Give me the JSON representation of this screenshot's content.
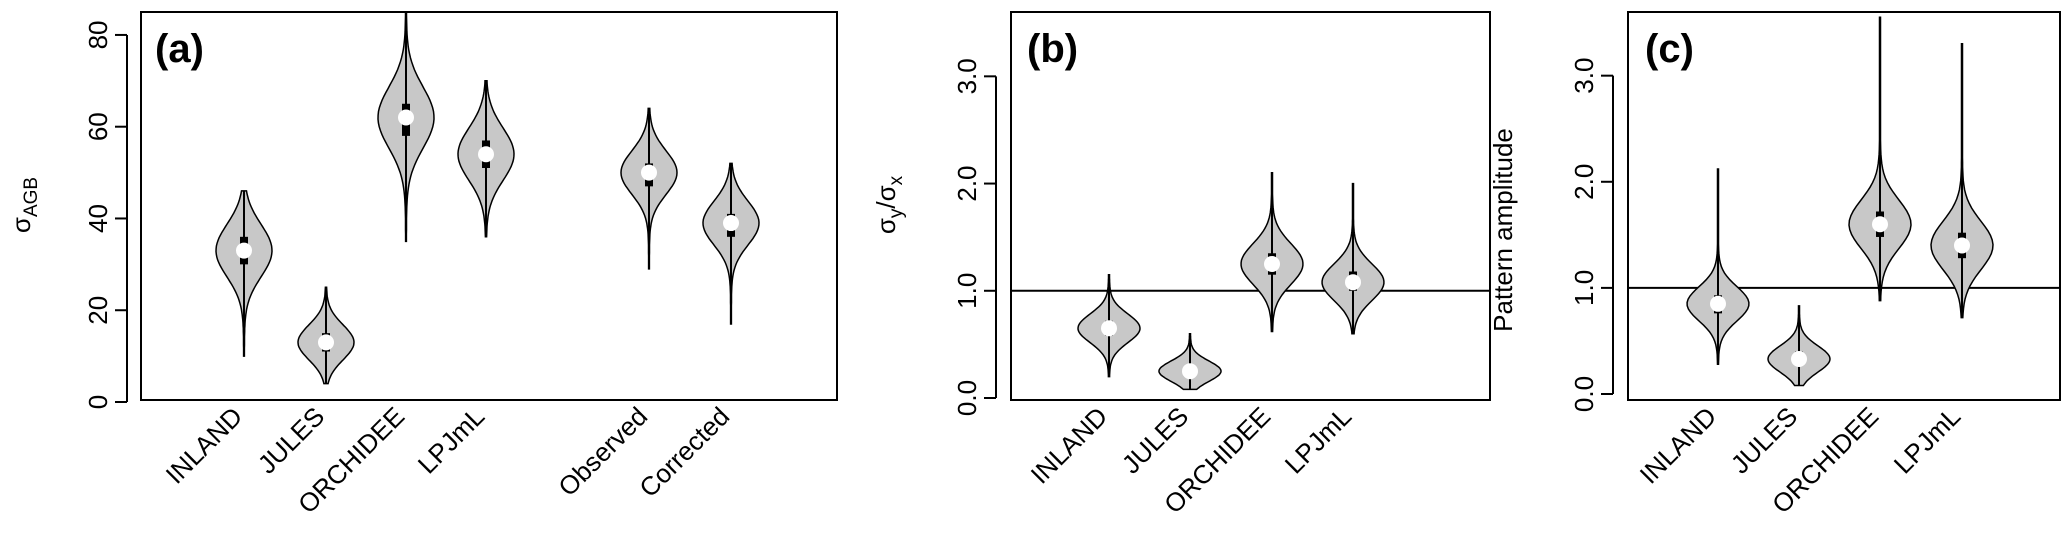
{
  "chart_data": [
    {
      "type": "violin",
      "panel_label": "(a)",
      "ylabel_main": "σ",
      "ylabel_sub": "AGB",
      "ylim": [
        0,
        85
      ],
      "yticks": [
        0,
        20,
        40,
        60,
        80
      ],
      "ytick_labels": [
        "0",
        "20",
        "40",
        "60",
        "80"
      ],
      "categories": [
        "INLAND",
        "JULES",
        "ORCHIDEE",
        "LPJmL",
        "Observed",
        "Corrected"
      ],
      "violins": [
        {
          "label": "INLAND",
          "median": 33,
          "q1": 30,
          "q3": 36,
          "min": 10,
          "max": 46
        },
        {
          "label": "JULES",
          "median": 13,
          "q1": 11,
          "q3": 15,
          "min": 4,
          "max": 25
        },
        {
          "label": "ORCHIDEE",
          "median": 62,
          "q1": 58,
          "q3": 65,
          "min": 35,
          "max": 85
        },
        {
          "label": "LPJmL",
          "median": 54,
          "q1": 51,
          "q3": 57,
          "min": 36,
          "max": 70
        },
        {
          "label": "Observed",
          "median": 50,
          "q1": 47,
          "q3": 52,
          "min": 29,
          "max": 64
        },
        {
          "label": "Corrected",
          "median": 39,
          "q1": 36,
          "q3": 41,
          "min": 17,
          "max": 52
        }
      ]
    },
    {
      "type": "violin",
      "panel_label": "(b)",
      "ylabel_main": "σ",
      "ylabel_sub": "y",
      "ylabel_sep": "/σ",
      "ylabel_sub2": "x",
      "ylim": [
        0,
        3.6
      ],
      "yticks": [
        0,
        1,
        2,
        3
      ],
      "ytick_labels": [
        "0.0",
        "1.0",
        "2.0",
        "3.0"
      ],
      "hline": 1.0,
      "categories": [
        "INLAND",
        "JULES",
        "ORCHIDEE",
        "LPJmL"
      ],
      "violins": [
        {
          "label": "INLAND",
          "median": 0.65,
          "q1": 0.58,
          "q3": 0.72,
          "min": 0.2,
          "max": 1.15
        },
        {
          "label": "JULES",
          "median": 0.25,
          "q1": 0.2,
          "q3": 0.3,
          "min": 0.08,
          "max": 0.6
        },
        {
          "label": "ORCHIDEE",
          "median": 1.25,
          "q1": 1.15,
          "q3": 1.35,
          "min": 0.62,
          "max": 2.1
        },
        {
          "label": "LPJmL",
          "median": 1.08,
          "q1": 1.0,
          "q3": 1.18,
          "min": 0.6,
          "max": 2.0
        }
      ]
    },
    {
      "type": "violin",
      "panel_label": "(c)",
      "ylabel": "Pattern amplitude",
      "ylim": [
        0,
        3.6
      ],
      "yticks": [
        0,
        1,
        2,
        3
      ],
      "ytick_labels": [
        "0.0",
        "1.0",
        "2.0",
        "3.0"
      ],
      "hline": 1.0,
      "categories": [
        "INLAND",
        "JULES",
        "ORCHIDEE",
        "LPJmL"
      ],
      "violins": [
        {
          "label": "INLAND",
          "median": 0.85,
          "q1": 0.76,
          "q3": 0.93,
          "min": 0.28,
          "max": 2.12
        },
        {
          "label": "JULES",
          "median": 0.33,
          "q1": 0.27,
          "q3": 0.4,
          "min": 0.08,
          "max": 0.83
        },
        {
          "label": "ORCHIDEE",
          "median": 1.6,
          "q1": 1.48,
          "q3": 1.72,
          "min": 0.88,
          "max": 3.55
        },
        {
          "label": "LPJmL",
          "median": 1.4,
          "q1": 1.28,
          "q3": 1.52,
          "min": 0.72,
          "max": 3.3
        }
      ]
    }
  ],
  "colors": {
    "violin_fill": "#c8c8c8",
    "median_marker": "#ffffff",
    "line": "#000000"
  }
}
